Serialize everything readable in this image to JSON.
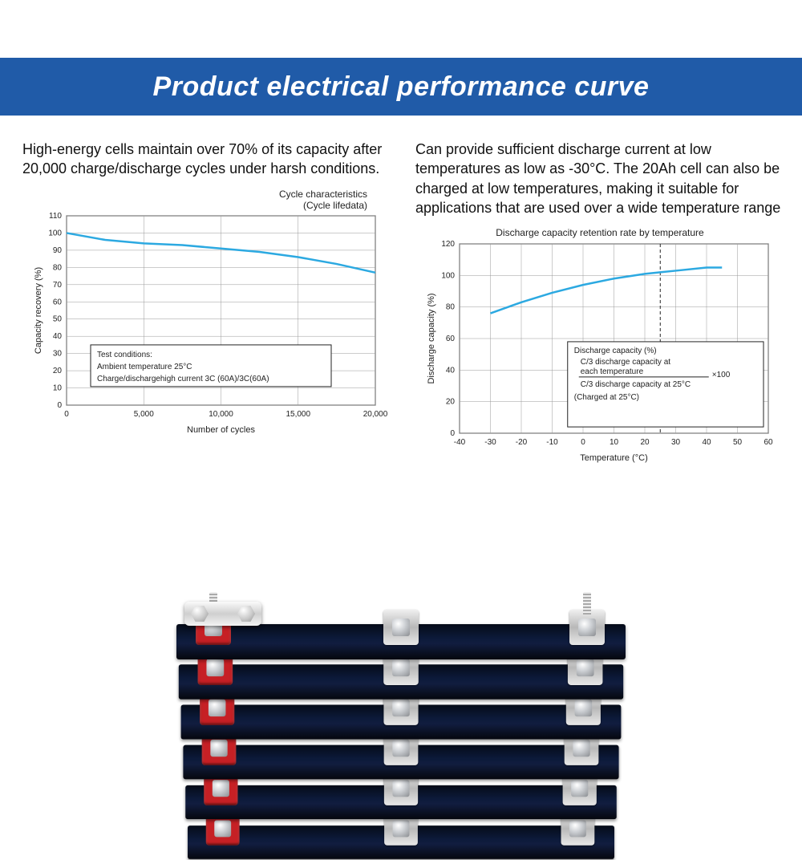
{
  "header": {
    "title": "Product electrical performance curve",
    "background": "#205ba8",
    "text_color": "#ffffff",
    "fontsize": 34
  },
  "left": {
    "desc": "High-energy cells maintain over 70% of its capacity after 20,000 charge/discharge cycles under harsh conditions.",
    "chart": {
      "type": "line",
      "title_line1": "Cycle characteristics",
      "title_line2": "(Cycle lifedata)",
      "xlabel": "Number of cycles",
      "ylabel": "Capacity recovery (%)",
      "xlim": [
        0,
        20000
      ],
      "ylim": [
        0,
        110
      ],
      "xticks": [
        0,
        5000,
        10000,
        15000,
        20000
      ],
      "xticklabels": [
        "0",
        "5,000",
        "10,000",
        "15,000",
        "20,000"
      ],
      "yticks": [
        0,
        10,
        20,
        30,
        40,
        50,
        60,
        70,
        80,
        90,
        100,
        110
      ],
      "line_color": "#2ca9e1",
      "line_width": 2.5,
      "grid_color": "#999999",
      "axis_color": "#222222",
      "background": "#ffffff",
      "points_x": [
        0,
        2500,
        5000,
        7500,
        10000,
        12500,
        15000,
        17500,
        20000
      ],
      "points_y": [
        100,
        96,
        94,
        93,
        91,
        89,
        86,
        82,
        77
      ],
      "legend": {
        "line1": "Test conditions:",
        "line2": "Ambient temperature  25°C",
        "line3": "Charge/dischargehigh current 3C (60A)/3C(60A)"
      },
      "label_fontsize": 11,
      "tick_fontsize": 10
    }
  },
  "right": {
    "desc": "Can provide sufficient discharge current at low  temperatures as low as -30°C. The 20Ah cell can also be charged at low temperatures, making it suitable for applications that are used over a wide temperature range",
    "chart": {
      "type": "line",
      "title": "Discharge capacity retention rate by temperature",
      "xlabel": "Temperature (°C)",
      "ylabel": "Discharge capacity (%)",
      "tick_fontsize": 10,
      "label_fontsize": 11,
      "xlim": [
        -40,
        60
      ],
      "ylim": [
        0,
        120
      ],
      "xticks": [
        -40,
        -30,
        -20,
        -10,
        0,
        10,
        20,
        30,
        40,
        50,
        60
      ],
      "yticks": [
        0,
        20,
        40,
        60,
        80,
        100,
        120
      ],
      "line_color": "#2ca9e1",
      "line_width": 2.5,
      "grid_color": "#999999",
      "axis_color": "#222222",
      "background": "#ffffff",
      "points_x": [
        -30,
        -20,
        -10,
        0,
        10,
        20,
        25,
        30,
        40,
        45
      ],
      "points_y": [
        76,
        83,
        89,
        94,
        98,
        101,
        102,
        103,
        105,
        105
      ],
      "dashed_x": 25,
      "legend": {
        "line1": "Discharge capacity (%)",
        "line2a": "C/3 discharge capacity at",
        "line2b": "each temperature",
        "line3": "C/3 discharge capacity at 25°C",
        "tail": "×100",
        "line4": "(Charged at 25°C)"
      }
    }
  },
  "photo": {
    "cell_count": 6,
    "cell_body_color_top": "#050b18",
    "cell_body_color_mid": "#111d3f",
    "terminal_red": "#c62025",
    "terminal_silver": "#d8d8d8",
    "busbar_cells": [
      4,
      5
    ]
  }
}
